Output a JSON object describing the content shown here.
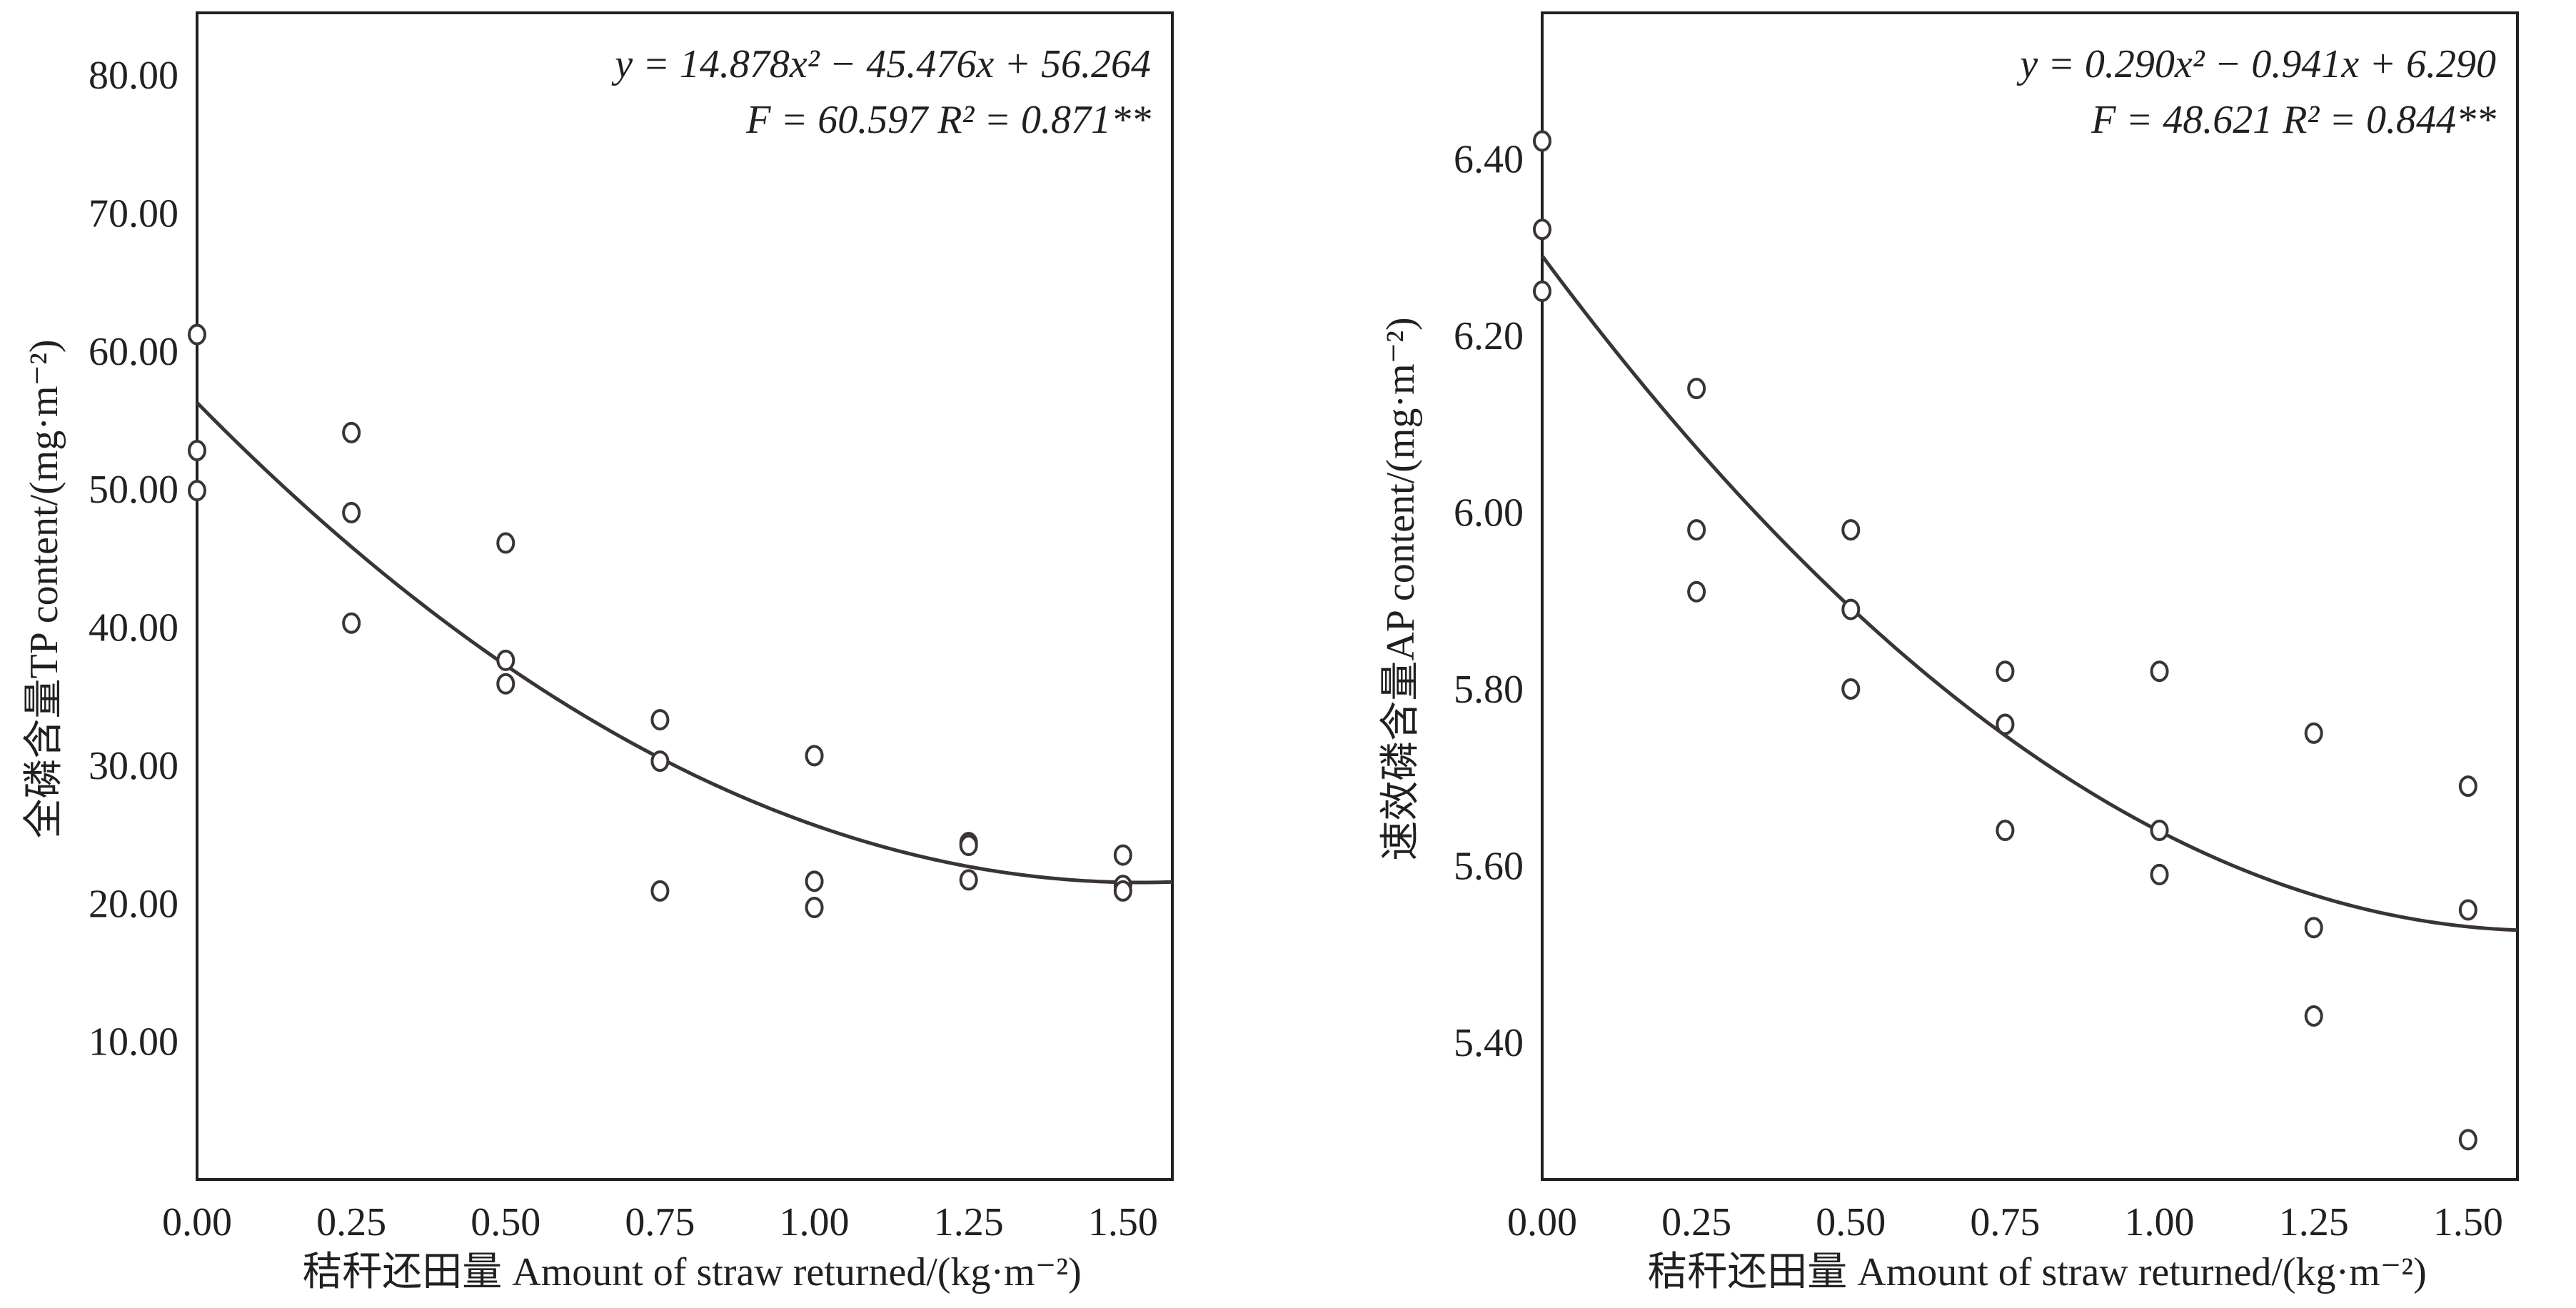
{
  "chart_data": [
    {
      "type": "scatter",
      "xlabel": "秸秆还田量  Amount of straw returned/(kg·m⁻²)",
      "ylabel": "全磷含量TP content/(mg·m⁻²)",
      "xlim": [
        0,
        1.58
      ],
      "ylim": [
        0,
        84.5
      ],
      "xticks": [
        "0.00",
        "0.25",
        "0.50",
        "0.75",
        "1.00",
        "1.25",
        "1.50"
      ],
      "yticks": [
        "10.00",
        "20.00",
        "30.00",
        "40.00",
        "50.00",
        "60.00",
        "70.00",
        "80.00"
      ],
      "equation": "y = 14.878x² − 45.476x + 56.264",
      "stats": "F = 60.597   R² = 0.871**",
      "fit": {
        "a": 14.878,
        "b": -45.476,
        "c": 56.264
      },
      "series": [
        {
          "x": [
            0,
            0,
            0,
            0.25,
            0.25,
            0.25,
            0.5,
            0.5,
            0.5,
            0.75,
            0.75,
            0.75,
            1.0,
            1.0,
            1.0,
            1.25,
            1.25,
            1.25,
            1.5,
            1.5,
            1.5
          ],
          "y": [
            61.2,
            52.8,
            49.9,
            54.1,
            48.3,
            40.3,
            46.1,
            37.6,
            35.9,
            33.3,
            30.3,
            20.9,
            30.7,
            21.6,
            19.7,
            24.4,
            24.2,
            21.7,
            23.5,
            21.3,
            20.9
          ]
        }
      ],
      "grid": false,
      "legend": "top-right"
    },
    {
      "type": "scatter",
      "xlabel": "秸秆还田量  Amount of straw returned/(kg·m⁻²)",
      "ylabel": "速效磷含量AP content/(mg·m⁻²)",
      "xlim": [
        0,
        1.58
      ],
      "ylim": [
        5.245,
        6.565
      ],
      "xticks": [
        "0.00",
        "0.25",
        "0.50",
        "0.75",
        "1.00",
        "1.25",
        "1.50"
      ],
      "yticks": [
        "5.40",
        "5.60",
        "5.80",
        "6.00",
        "6.20",
        "6.40"
      ],
      "equation": "y = 0.290x² − 0.941x + 6.290",
      "stats": "F = 48.621   R² = 0.844**",
      "fit": {
        "a": 0.29,
        "b": -0.941,
        "c": 6.29
      },
      "series": [
        {
          "x": [
            0,
            0,
            0,
            0.25,
            0.25,
            0.25,
            0.5,
            0.5,
            0.5,
            0.75,
            0.75,
            0.75,
            1.0,
            1.0,
            1.0,
            1.25,
            1.25,
            1.25,
            1.5,
            1.5,
            1.5
          ],
          "y": [
            6.42,
            6.32,
            6.25,
            6.14,
            5.98,
            5.91,
            5.98,
            5.89,
            5.8,
            5.82,
            5.76,
            5.64,
            5.82,
            5.64,
            5.59,
            5.75,
            5.53,
            5.43,
            5.69,
            5.55,
            5.29
          ]
        }
      ],
      "grid": false,
      "legend": "top-right"
    }
  ]
}
